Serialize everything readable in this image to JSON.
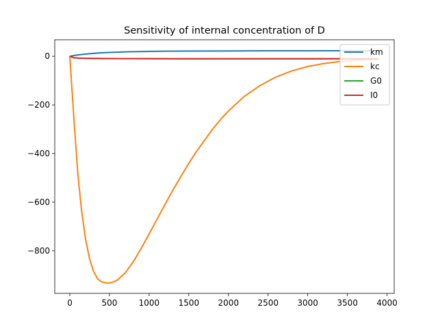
{
  "chart_data": {
    "type": "line",
    "title": "Sensitivity of internal concentration of D",
    "xlabel": "",
    "ylabel": "",
    "xlim": [
      -190,
      4090
    ],
    "ylim": [
      -975,
      68
    ],
    "xticks": [
      0,
      500,
      1000,
      1500,
      2000,
      2500,
      3000,
      3500,
      4000
    ],
    "yticks": [
      0,
      -200,
      -400,
      -600,
      -800
    ],
    "ytick_labels": [
      "0",
      "−200",
      "−400",
      "−600",
      "−800"
    ],
    "grid": false,
    "legend_position": "top-right",
    "series": [
      {
        "name": "km",
        "color": "#1f77b4",
        "x": [
          0,
          50,
          100,
          200,
          300,
          400,
          500,
          750,
          1000,
          1250,
          1500,
          2000,
          2500,
          3000,
          3500,
          3900
        ],
        "y": [
          0,
          3,
          5.5,
          9,
          12,
          14.5,
          16,
          18.5,
          20,
          21,
          21.5,
          22,
          22.5,
          22.5,
          22.8,
          23
        ]
      },
      {
        "name": "kc",
        "color": "#ff7f0e",
        "x": [
          0,
          50,
          100,
          150,
          200,
          250,
          300,
          350,
          400,
          450,
          500,
          550,
          600,
          700,
          800,
          900,
          1000,
          1100,
          1200,
          1300,
          1400,
          1500,
          1600,
          1700,
          1800,
          1900,
          2000,
          2200,
          2400,
          2600,
          2800,
          3000,
          3200,
          3400,
          3600,
          3900
        ],
        "y": [
          0,
          -250,
          -480,
          -640,
          -755,
          -835,
          -885,
          -915,
          -928,
          -932,
          -932,
          -928,
          -920,
          -890,
          -845,
          -790,
          -730,
          -670,
          -610,
          -550,
          -495,
          -440,
          -390,
          -345,
          -300,
          -260,
          -225,
          -165,
          -120,
          -85,
          -60,
          -42,
          -30,
          -22,
          -16,
          -12
        ]
      },
      {
        "name": "G0",
        "color": "#2ca02c",
        "x": [
          0,
          50,
          100,
          200,
          400,
          600,
          1000,
          1500,
          2000,
          2500,
          3000,
          3500,
          3900
        ],
        "y": [
          0,
          -6,
          -7.5,
          -8.5,
          -9.3,
          -9.7,
          -10,
          -10.2,
          -10.3,
          -10.3,
          -10.4,
          -10.4,
          -10.4
        ]
      },
      {
        "name": "I0",
        "color": "#d62728",
        "x": [
          0,
          50,
          100,
          200,
          400,
          600,
          1000,
          1500,
          2000,
          2500,
          3000,
          3500,
          3900
        ],
        "y": [
          0,
          -6,
          -7.5,
          -8.5,
          -9.3,
          -9.7,
          -10,
          -10.2,
          -10.3,
          -10.3,
          -10.4,
          -10.4,
          -10.4
        ]
      }
    ]
  }
}
